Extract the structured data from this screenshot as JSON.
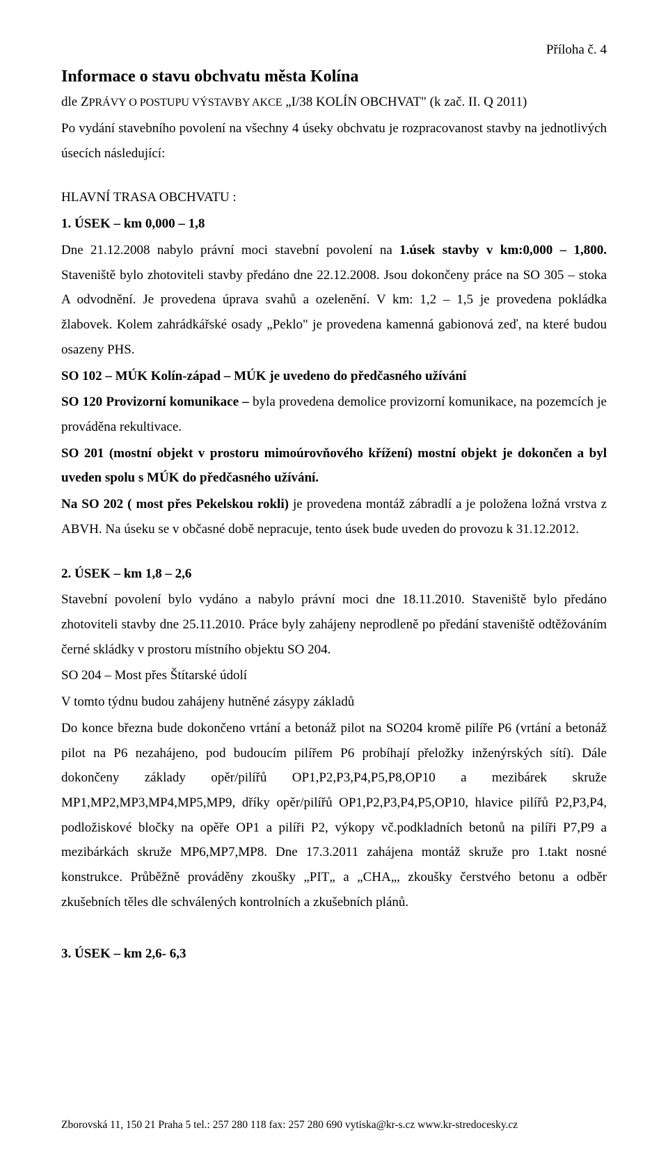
{
  "header": {
    "appendix": "Příloha č. 4"
  },
  "title": "Informace o stavu obchvatu města Kolína",
  "subtitle_prefix": " dle Z",
  "subtitle_caps": "PRÁVY O POSTUPU VÝSTAVBY AKCE",
  "subtitle_suffix": " „I/38 KOLÍN OBCHVAT\" (k zač. II. Q 2011)",
  "intro": "Po vydání stavebního povolení na všechny 4 úseky obchvatu je rozpracovanost stavby na jednotlivých úsecích následující:",
  "main_trace": "HLAVNÍ TRASA OBCHVATU :",
  "sec1": {
    "heading": " 1. ÚSEK – km 0,000 – 1,8",
    "p1_a": "Dne 21.12.2008 nabylo právní moci stavební povolení na ",
    "p1_b": "1.úsek stavby v km:0,000 – 1,800.",
    "p1_c": " Staveniště bylo zhotoviteli stavby předáno dne 22.12.2008. Jsou dokončeny práce na SO  305 – stoka A odvodnění. Je provedena úprava svahů a ozelenění. V km: 1,2 – 1,5 je provedena pokládka žlabovek. Kolem zahrádkářské osady „Peklo\" je provedena kamenná gabionová zeď, na které budou osazeny PHS.",
    "so102": "SO 102 – MÚK Kolín-západ – MÚK je uvedeno do předčasného užívání",
    "so120_a": "SO 120  Provizorní komunikace – ",
    "so120_b": "byla provedena demolice provizorní komunikace, na pozemcích je prováděna rekultivace.",
    "so201": "SO 201 (mostní objekt v prostoru mimoúrovňového křížení) mostní objekt je dokončen  a byl uveden spolu  s  MÚK do předčasného užívání.",
    "so202_a": "Na SO 202 ( most přes Pekelskou rokli) ",
    "so202_b": "je provedena montáž zábradlí a je položena ložná vrstva z ABVH. Na úseku se v občasné době nepracuje, tento úsek bude uveden do provozu k 31.12.2012."
  },
  "sec2": {
    "heading": "2. ÚSEK – km 1,8 – 2,6",
    "p1": "Stavební povolení bylo vydáno a nabylo právní moci dne 18.11.2010. Staveniště bylo předáno zhotoviteli stavby dne 25.11.2010. Práce byly zahájeny neprodleně po předání staveniště odtěžováním černé skládky v prostoru místního objektu SO 204.",
    "p2": "SO 204 – Most přes Štítarské údolí",
    "p3": "V tomto týdnu  budou zahájeny hutněné zásypy základů",
    "p4": "Do konce března bude dokončeno vrtání a betonáž pilot na SO204 kromě pilíře P6 (vrtání a betonáž pilot na P6 nezahájeno, pod budoucím pilířem P6 probíhají přeložky inženýrských sítí). Dále dokončeny základy opěr/pilířů OP1,P2,P3,P4,P5,P8,OP10 a mezibárek skruže MP1,MP2,MP3,MP4,MP5,MP9, dříky opěr/pilířů OP1,P2,P3,P4,P5,OP10, hlavice pilířů P2,P3,P4, podložiskové bločky na opěře OP1 a pilíři P2, výkopy vč.podkladních betonů na pilíři P7,P9 a mezibárkách skruže MP6,MP7,MP8. Dne 17.3.2011 zahájena montáž skruže pro 1.takt nosné konstrukce. Průběžně prováděny zkoušky „PIT„ a „CHA„, zkoušky čerstvého betonu a odběr zkušebních těles dle schválených kontrolních a zkušebních plánů."
  },
  "sec3": {
    "heading": "3. ÚSEK – km 2,6- 6,3"
  },
  "footer": {
    "text": "Zborovská 11, 150 21 Praha 5   tel.: 257 280 118   fax: 257 280 690   vytiska@kr-s.cz   www.kr-stredocesky.cz"
  }
}
